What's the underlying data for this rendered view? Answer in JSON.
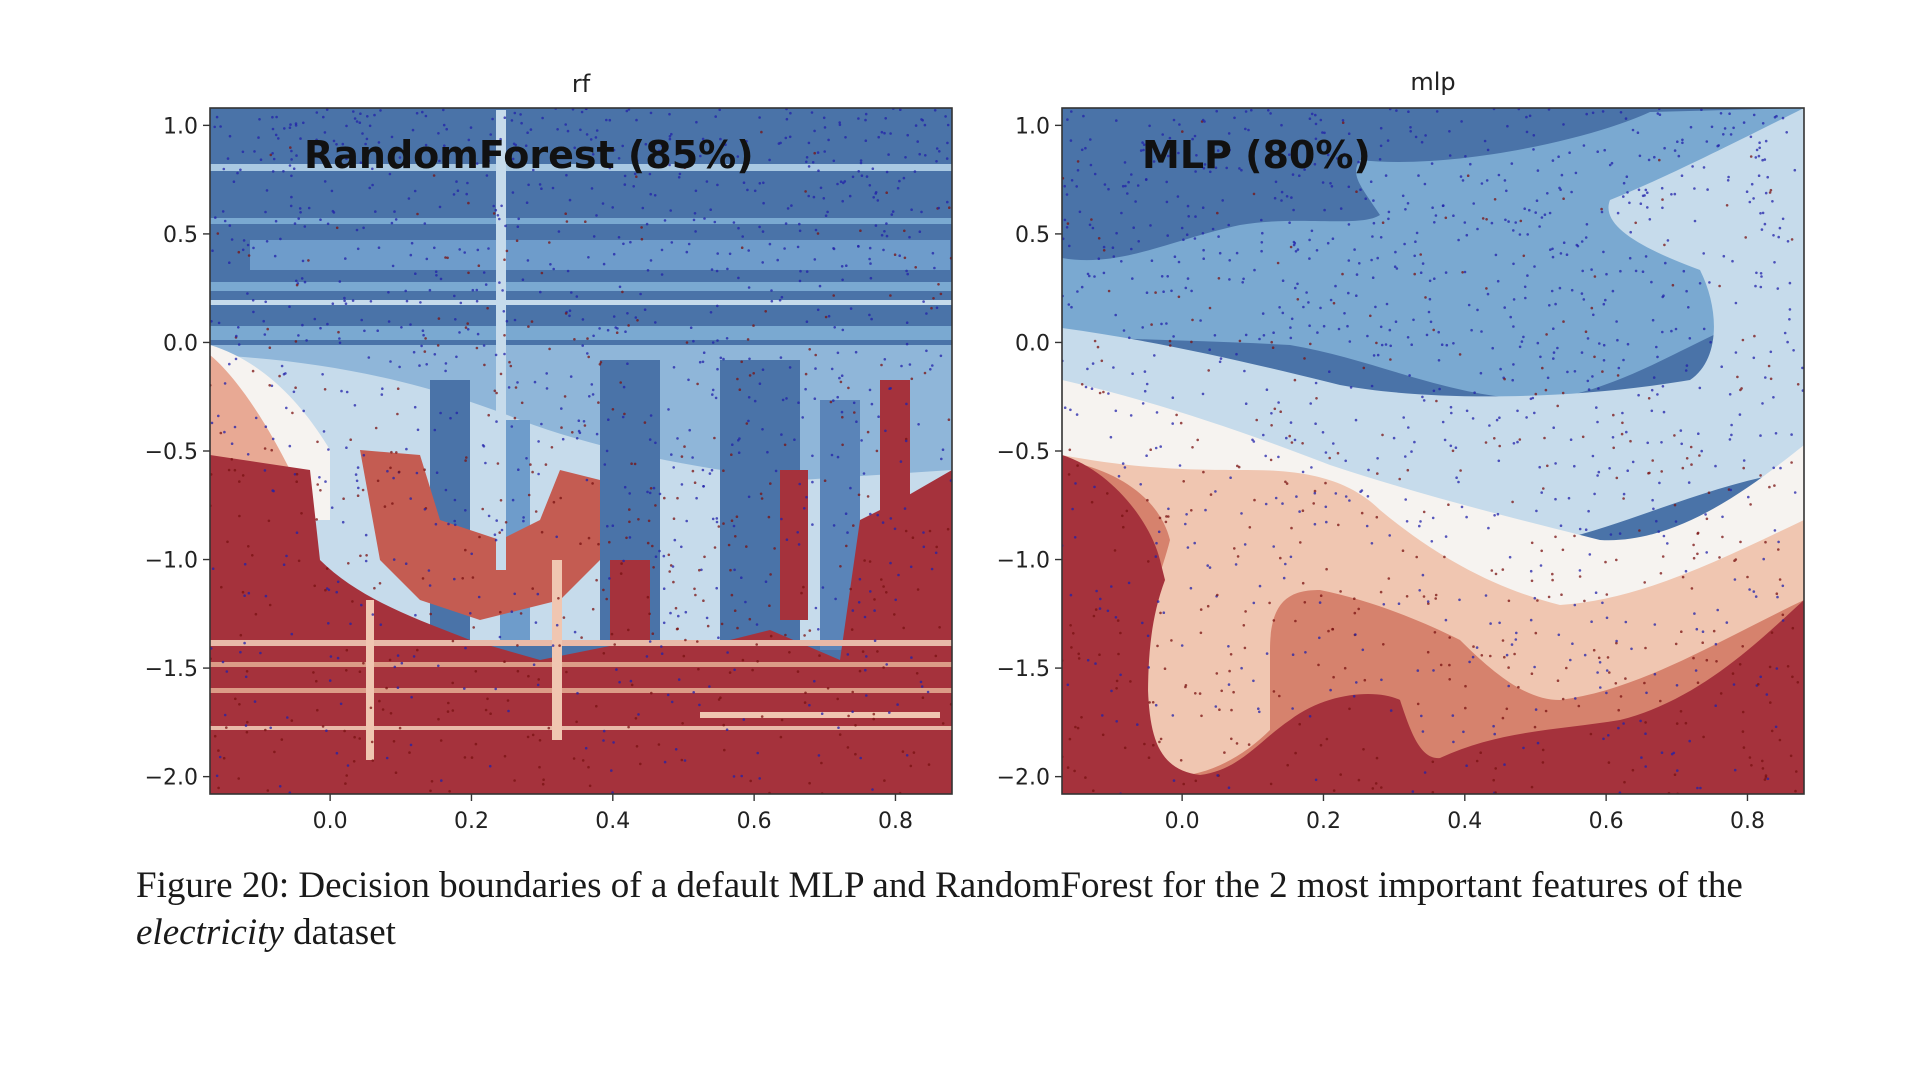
{
  "chart_data": [
    {
      "type": "heatmap",
      "title": "rf",
      "annotation": "RandomForest (85%)",
      "xlim": [
        -0.17,
        0.88
      ],
      "ylim": [
        -2.08,
        1.08
      ],
      "xticks": [
        "0.0",
        "0.2",
        "0.4",
        "0.6",
        "0.8"
      ],
      "yticks": [
        "1.0",
        "0.5",
        "0.0",
        "−0.5",
        "−1.0",
        "−1.5",
        "−2.0"
      ],
      "colormap": [
        "#a5323c",
        "#cf7f6b",
        "#f0c6b1",
        "#f6f3f0",
        "#c6dbeb",
        "#7aa9d1",
        "#4a73a8"
      ],
      "scatter_colors": [
        "#2222aa",
        "#7a1212"
      ],
      "grid": false
    },
    {
      "type": "heatmap",
      "title": "mlp",
      "annotation": "MLP (80%)",
      "xlim": [
        -0.17,
        0.88
      ],
      "ylim": [
        -2.08,
        1.08
      ],
      "xticks": [
        "0.0",
        "0.2",
        "0.4",
        "0.6",
        "0.8"
      ],
      "yticks": [
        "1.0",
        "0.5",
        "0.0",
        "−0.5",
        "−1.0",
        "−1.5",
        "−2.0"
      ],
      "colormap": [
        "#a5323c",
        "#d6826d",
        "#f2c8b3",
        "#f6f3f0",
        "#c6dbeb",
        "#7aa9d1",
        "#4a73a8"
      ],
      "scatter_colors": [
        "#2222aa",
        "#7a1212"
      ],
      "grid": false
    }
  ],
  "caption": {
    "prefix": "Figure 20: Decision boundaries of a default MLP and RandomForest for the 2 most important features of the ",
    "dataset": "electricity",
    "suffix": " dataset"
  }
}
